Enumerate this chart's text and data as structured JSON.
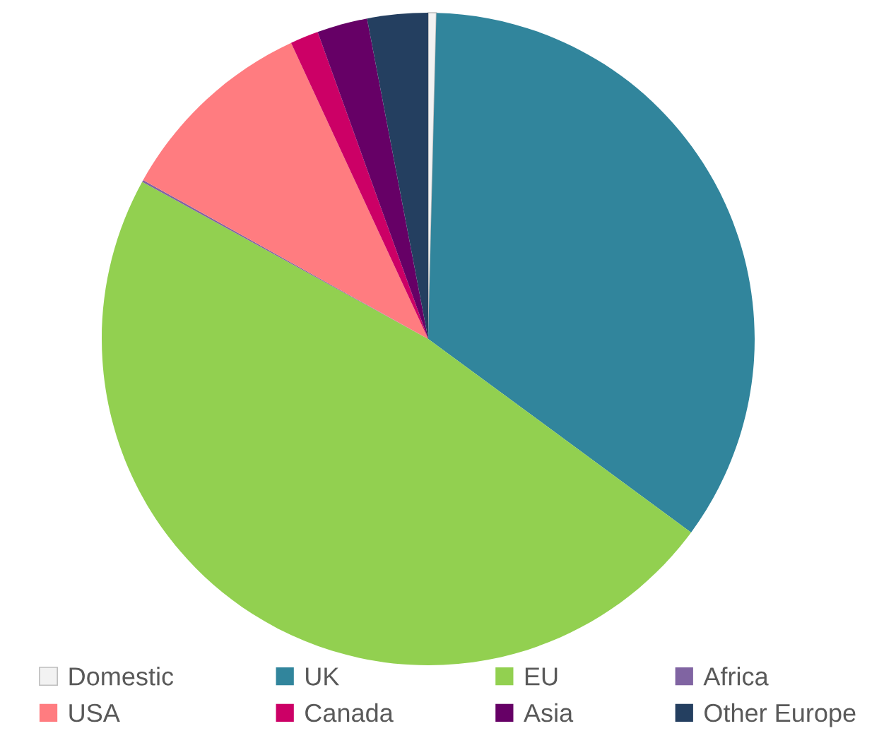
{
  "chart_data": {
    "type": "pie",
    "categories": [
      "Domestic",
      "UK",
      "EU",
      "Africa",
      "USA",
      "Canada",
      "Asia",
      "Other Europe"
    ],
    "values": [
      0.4,
      34.7,
      47.9,
      0.1,
      10.0,
      1.4,
      2.5,
      3.0
    ],
    "colors": [
      "#f2f2f2",
      "#31859c",
      "#92d050",
      "#8064a2",
      "#ff7c80",
      "#cc0066",
      "#660066",
      "#243f60"
    ],
    "legend": "bottom"
  }
}
